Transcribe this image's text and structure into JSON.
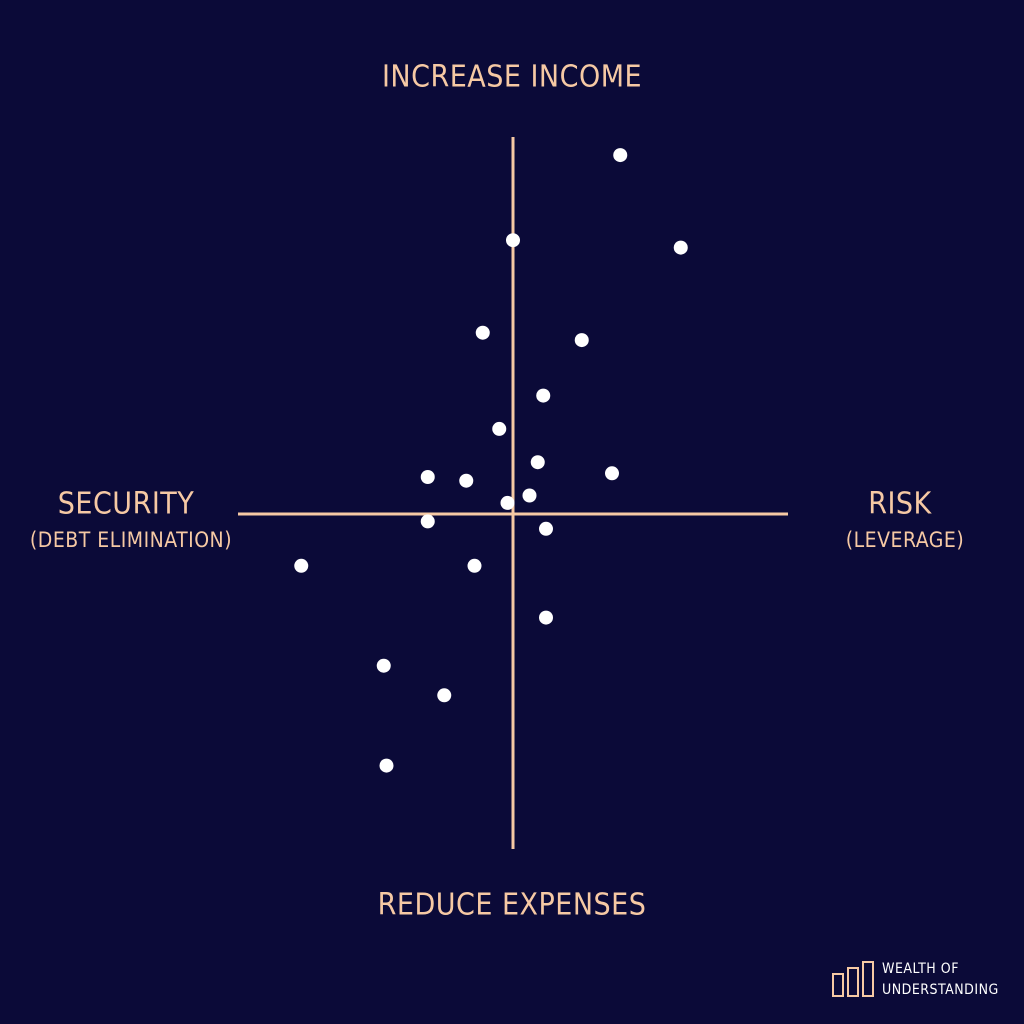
{
  "chart_data": {
    "type": "scatter",
    "axis_labels": {
      "top": "INCREASE INCOME",
      "bottom": "REDUCE EXPENSES",
      "left": "SECURITY",
      "left_sub": "(DEBT ELIMINATION)",
      "right": "RISK",
      "right_sub": "(LEVERAGE)"
    },
    "xlim": [
      -100,
      100
    ],
    "ylim": [
      -100,
      100
    ],
    "axis_color": "#f6c9a4",
    "point_color": "#ffffff",
    "x": [
      39,
      0,
      61,
      -11,
      25,
      11,
      -5,
      9,
      -31,
      -17,
      36,
      -2,
      6,
      -31,
      12,
      -77,
      -14,
      12,
      -47,
      -25,
      -46
    ],
    "y": [
      97,
      74,
      72,
      49,
      47,
      32,
      23,
      14,
      10,
      9,
      11,
      3,
      5,
      -2,
      -4,
      -14,
      -14,
      -28,
      -41,
      -49,
      -68
    ]
  },
  "brand": {
    "line1": "WEALTH OF",
    "line2": "UNDERSTANDING"
  }
}
